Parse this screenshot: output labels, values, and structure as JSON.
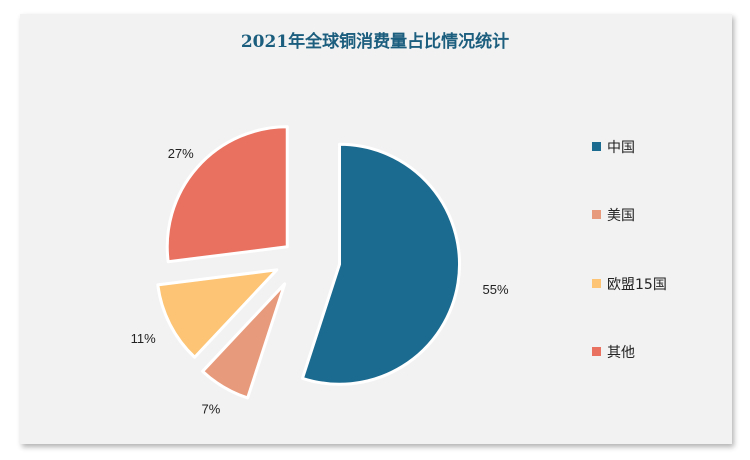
{
  "chart_data": {
    "type": "pie",
    "title": "2021年全球铜消费量占比情况统计",
    "categories": [
      "中国",
      "美国",
      "欧盟15国",
      "其他"
    ],
    "values": [
      55,
      7,
      11,
      27
    ],
    "data_labels": [
      "55%",
      "7%",
      "11%",
      "27%"
    ],
    "colors": [
      "#1b6a8f",
      "#e89a7c",
      "#fcc474",
      "#e87160"
    ],
    "exploded": true,
    "legend_position": "right"
  },
  "colors": {
    "title": "#1b5e7e",
    "panel_background": "#f2f2f2",
    "slice_border": "#ffffff"
  }
}
